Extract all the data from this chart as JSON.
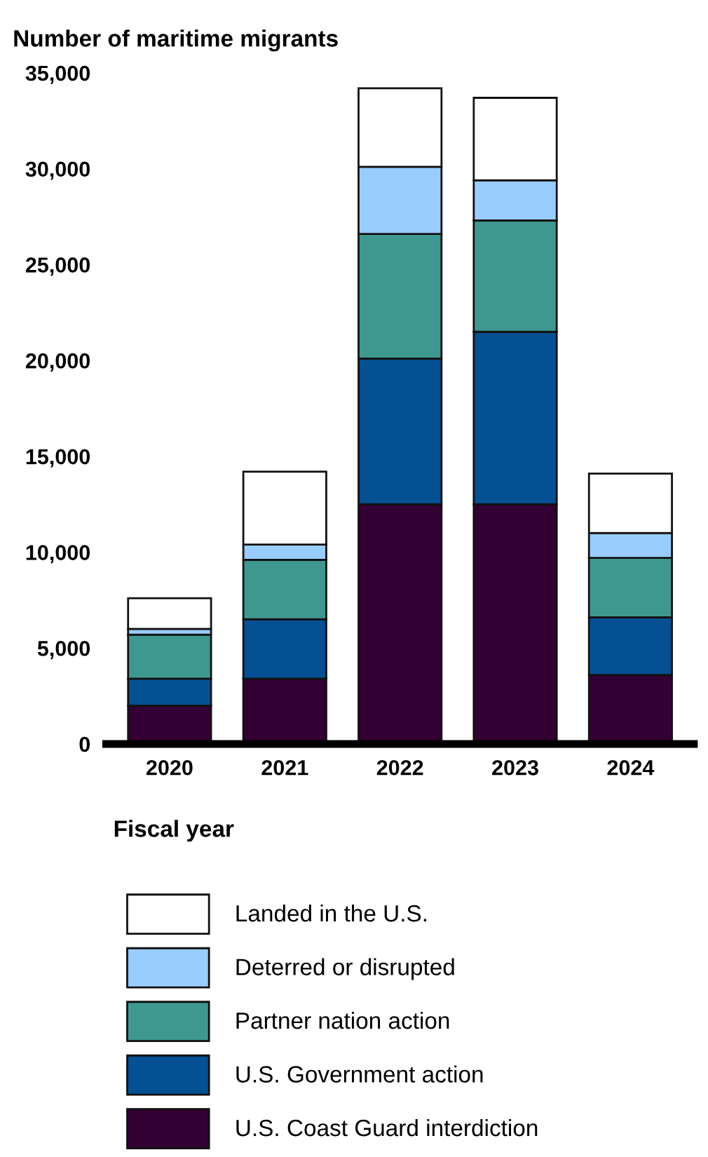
{
  "chart_data": {
    "type": "bar",
    "stacked": true,
    "ylabel": "Number of maritime migrants",
    "xlabel": "Fiscal year",
    "categories": [
      "2020",
      "2021",
      "2022",
      "2023",
      "2024"
    ],
    "series": [
      {
        "name": "U.S. Coast Guard interdiction",
        "color": "#330033",
        "values": [
          2000,
          3400,
          12500,
          12500,
          3600
        ]
      },
      {
        "name": "U.S. Government action",
        "color": "#045093",
        "values": [
          1400,
          3100,
          7600,
          9000,
          3000
        ]
      },
      {
        "name": "Partner nation action",
        "color": "#3f9890",
        "values": [
          2300,
          3100,
          6500,
          5800,
          3100
        ]
      },
      {
        "name": "Deterred or disrupted",
        "color": "#99ccff",
        "values": [
          300,
          800,
          3500,
          2100,
          1300
        ]
      },
      {
        "name": "Landed in the U.S.",
        "color": "#ffffff",
        "values": [
          1600,
          3800,
          4100,
          4300,
          3100
        ]
      }
    ],
    "ylim": [
      0,
      35000
    ],
    "yticks": [
      0,
      {
        "value": 5000,
        "label": "5,000"
      },
      {
        "value": 10000,
        "label": "10,000"
      },
      {
        "value": 15000,
        "label": "15,000"
      },
      {
        "value": 20000,
        "label": "20,000"
      },
      {
        "value": 25000,
        "label": "25,000"
      },
      {
        "value": 30000,
        "label": "30,000"
      },
      {
        "value": 35000,
        "label": "35,000"
      }
    ],
    "grid": false,
    "legend": "bottom"
  }
}
